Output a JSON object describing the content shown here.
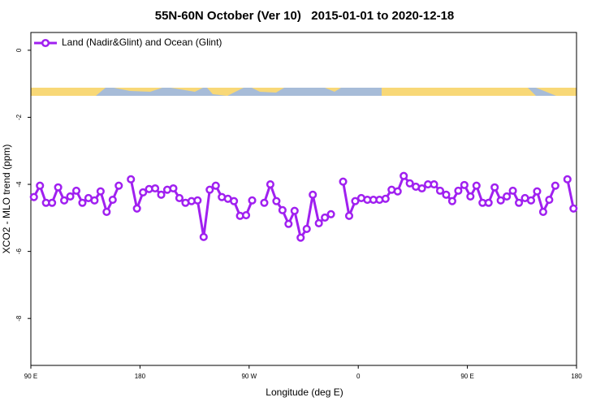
{
  "chart_data": {
    "type": "line",
    "title": "55N-60N October (Ver 10)   2015-01-01 to 2020-12-18",
    "x_label": "Longitude (deg E)",
    "y_label": "XCO2 - MLO trend (ppm)",
    "xlim": [
      90,
      540
    ],
    "ylim": [
      -9.4,
      0.53
    ],
    "xticks": [
      {
        "value": 90,
        "label": "90 E"
      },
      {
        "value": 180,
        "label": "180"
      },
      {
        "value": 270,
        "label": "90 W"
      },
      {
        "value": 360,
        "label": "0"
      },
      {
        "value": 450,
        "label": "90 E"
      },
      {
        "value": 540,
        "label": "180"
      }
    ],
    "yticks": [
      0,
      -2,
      -4,
      -6,
      -8
    ],
    "legend_position": "upper left",
    "x": [
      92.5,
      97.5,
      102.5,
      107.5,
      112.5,
      117.5,
      122.5,
      127.5,
      132.5,
      137.5,
      142.5,
      147.5,
      152.5,
      157.5,
      162.5,
      167.5,
      172.5,
      177.5,
      182.5,
      187.5,
      192.5,
      197.5,
      202.5,
      207.5,
      212.5,
      217.5,
      222.5,
      227.5,
      232.5,
      237.5,
      242.5,
      247.5,
      252.5,
      257.5,
      262.5,
      267.5,
      272.5,
      277.5,
      282.5,
      287.5,
      292.5,
      297.5,
      302.5,
      307.5,
      312.5,
      317.5,
      322.5,
      327.5,
      332.5,
      337.5,
      342.5,
      347.5,
      352.5,
      357.5,
      362.5,
      367.5,
      372.5,
      377.5,
      382.5,
      387.5,
      392.5,
      397.5,
      402.5,
      407.5,
      412.5,
      417.5,
      422.5,
      427.5,
      432.5,
      437.5,
      442.5,
      447.5,
      452.5,
      457.5,
      462.5,
      467.5,
      472.5,
      477.5,
      482.5,
      487.5,
      492.5,
      497.5,
      502.5,
      507.5,
      512.5,
      517.5,
      522.5,
      527.5,
      532.5,
      537.5
    ],
    "series": [
      {
        "name": "Land (Nadir&Glint) and Ocean (Glint)",
        "color": "#a020f0",
        "values": [
          -4.38,
          -4.04,
          -4.55,
          -4.55,
          -4.09,
          -4.48,
          -4.36,
          -4.19,
          -4.55,
          -4.41,
          -4.48,
          -4.21,
          -4.82,
          -4.46,
          -4.04,
          null,
          -3.85,
          -4.72,
          -4.24,
          -4.14,
          -4.12,
          -4.31,
          -4.16,
          -4.12,
          -4.41,
          -4.55,
          -4.5,
          -4.48,
          -5.57,
          -4.16,
          -4.04,
          -4.38,
          -4.43,
          -4.5,
          -4.94,
          -4.92,
          -4.48,
          null,
          -4.55,
          -4.0,
          -4.5,
          -4.77,
          -5.18,
          -4.79,
          -5.59,
          -5.33,
          -4.31,
          -5.16,
          -4.99,
          -4.89,
          null,
          -3.92,
          -4.94,
          -4.5,
          -4.41,
          -4.46,
          -4.46,
          -4.46,
          -4.43,
          -4.16,
          -4.21,
          -3.75,
          -3.97,
          -4.07,
          -4.12,
          -4.0,
          -4.0,
          -4.19,
          -4.31,
          -4.5,
          -4.19,
          -4.02,
          -4.36,
          -4.04,
          -4.55,
          -4.55,
          -4.09,
          -4.48,
          -4.36,
          -4.19,
          -4.55,
          -4.41,
          -4.48,
          -4.21,
          -4.82,
          -4.46,
          -4.04,
          null,
          -3.85,
          -4.72
        ]
      }
    ]
  }
}
